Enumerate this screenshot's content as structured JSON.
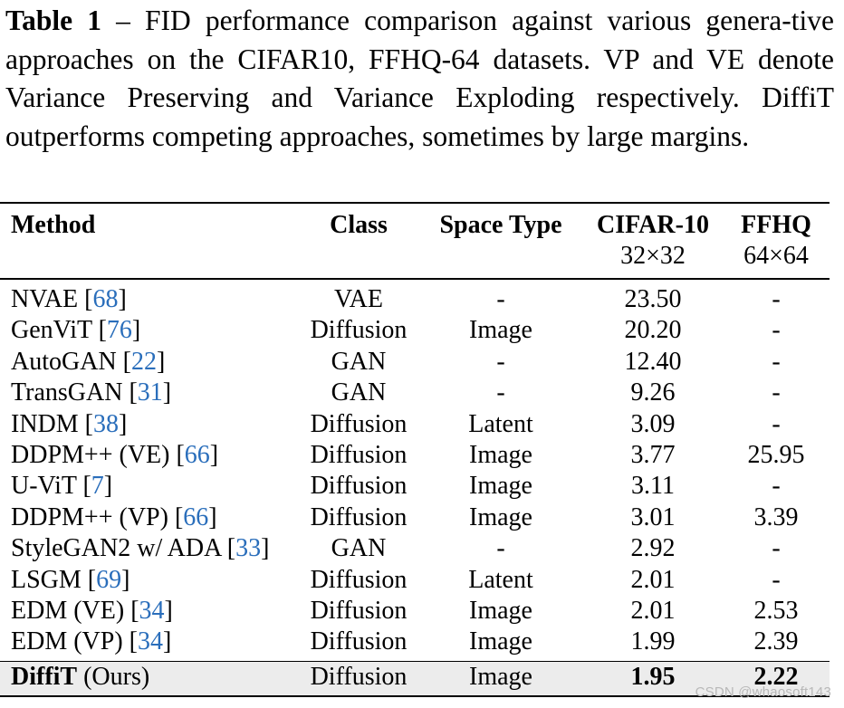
{
  "caption": {
    "label": "Table 1",
    "text": " – FID performance comparison against various genera-tive approaches on the CIFAR10, FFHQ-64 datasets. VP and VE denote Variance Preserving and Variance Exploding respectively. DiffiT outperforms competing approaches, sometimes by large margins."
  },
  "table": {
    "headers": {
      "method": "Method",
      "class": "Class",
      "space_type": "Space Type",
      "cifar": "CIFAR-10",
      "cifar_res": "32×32",
      "ffhq": "FFHQ",
      "ffhq_res": "64×64"
    },
    "rows": [
      {
        "name": "NVAE",
        "ref": "68",
        "class": "VAE",
        "space": "-",
        "cifar": "23.50",
        "ffhq": "-"
      },
      {
        "name": "GenViT",
        "ref": "76",
        "class": "Diffusion",
        "space": "Image",
        "cifar": "20.20",
        "ffhq": "-"
      },
      {
        "name": "AutoGAN",
        "ref": "22",
        "class": "GAN",
        "space": "-",
        "cifar": "12.40",
        "ffhq": "-"
      },
      {
        "name": "TransGAN",
        "ref": "31",
        "class": "GAN",
        "space": "-",
        "cifar": "9.26",
        "ffhq": "-"
      },
      {
        "name": "INDM",
        "ref": "38",
        "class": "Diffusion",
        "space": "Latent",
        "cifar": "3.09",
        "ffhq": "-"
      },
      {
        "name": "DDPM++ (VE)",
        "ref": "66",
        "class": "Diffusion",
        "space": "Image",
        "cifar": "3.77",
        "ffhq": "25.95"
      },
      {
        "name": "U-ViT",
        "ref": "7",
        "class": "Diffusion",
        "space": "Image",
        "cifar": "3.11",
        "ffhq": "-"
      },
      {
        "name": "DDPM++ (VP)",
        "ref": "66",
        "class": "Diffusion",
        "space": "Image",
        "cifar": "3.01",
        "ffhq": "3.39"
      },
      {
        "name": "StyleGAN2 w/ ADA",
        "ref": "33",
        "class": "GAN",
        "space": "-",
        "cifar": "2.92",
        "ffhq": "-"
      },
      {
        "name": "LSGM",
        "ref": "69",
        "class": "Diffusion",
        "space": "Latent",
        "cifar": "2.01",
        "ffhq": "-"
      },
      {
        "name": "EDM (VE)",
        "ref": "34",
        "class": "Diffusion",
        "space": "Image",
        "cifar": "2.01",
        "ffhq": "2.53"
      },
      {
        "name": "EDM (VP)",
        "ref": "34",
        "class": "Diffusion",
        "space": "Image",
        "cifar": "1.99",
        "ffhq": "2.39"
      }
    ],
    "ours": {
      "name": "DiffiT",
      "suffix": "(Ours)",
      "class": "Diffusion",
      "space": "Image",
      "cifar": "1.95",
      "ffhq": "2.22"
    }
  },
  "watermark": "CSDN @whaosoft143"
}
